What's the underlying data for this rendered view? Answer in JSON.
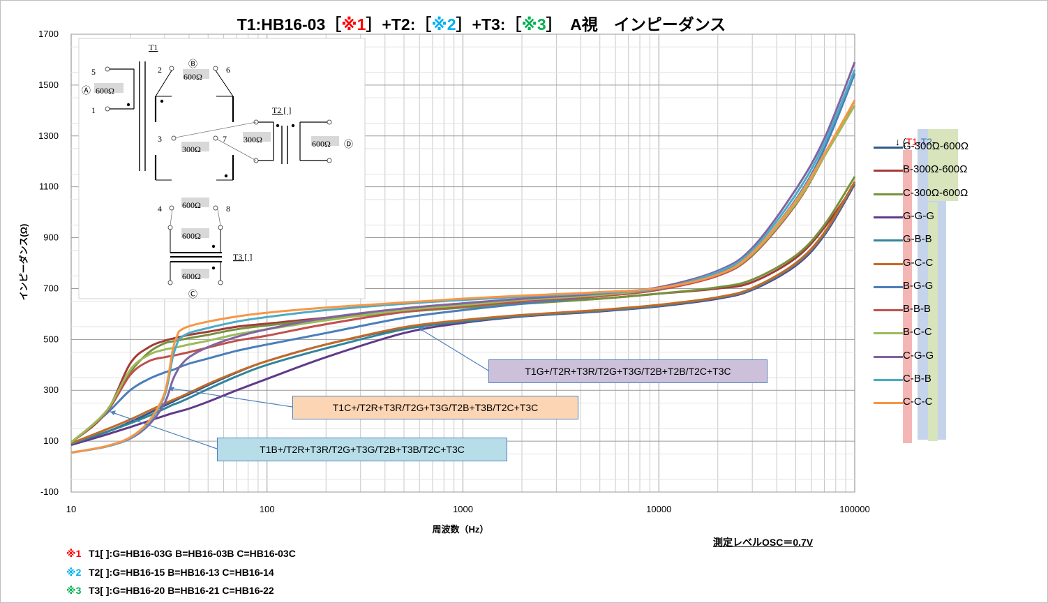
{
  "title_parts": [
    {
      "text": "T1:HB16-03［",
      "cls": ""
    },
    {
      "text": "※1",
      "cls": "red"
    },
    {
      "text": "］+T2:［",
      "cls": ""
    },
    {
      "text": "※2",
      "cls": "blue"
    },
    {
      "text": "］+T3:［",
      "cls": ""
    },
    {
      "text": "※3",
      "cls": "green"
    },
    {
      "text": "］　A視　インピーダンス",
      "cls": ""
    }
  ],
  "legend_header": {
    "arrow": "↓ (",
    "t1": "T1",
    "dash": "-",
    "t2": "T2",
    "tail": "-"
  },
  "measurement_note": "測定レベルOSC＝0.7V",
  "notes": [
    {
      "mark": "※1",
      "text": "T1[ ]:G=HB16-03G  B=HB16-03B  C=HB16-03C"
    },
    {
      "mark": "※2",
      "text": "T2[ ]:G=HB16-15    B=HB16-13    C=HB16-14"
    },
    {
      "mark": "※3",
      "text": "T3[ ]:G=HB16-20    B=HB16-21    C=HB16-22"
    }
  ],
  "callouts": [
    {
      "text": "T1G+/T2R+T3R/T2G+T3G/T2B+T2B/T2C+T3C",
      "bg": "#ccc0da"
    },
    {
      "text": "T1C+/T2R+T3R/T2G+T3G/T2B+T3B/T2C+T3C",
      "bg": "#fcd5b4"
    },
    {
      "text": "T1B+/T2R+T3R/T2G+T3G/T2B+T3B/T2C+T3C",
      "bg": "#b7dee8"
    }
  ],
  "colors": {
    "grid": "#c8c8c8",
    "band_red": "#f4b6b4",
    "band_blue": "#c5d4ea",
    "band_green": "#d7e4bc"
  },
  "inset": {
    "T1": "T1",
    "T2": "T2 [ ]",
    "T3": "T3 [ ]",
    "A": "Ⓐ",
    "B": "Ⓑ",
    "C": "Ⓒ",
    "D": "Ⓓ",
    "ohm600": "600Ω",
    "ohm300": "300Ω",
    "pins": [
      "1",
      "2",
      "3",
      "4",
      "5",
      "6",
      "7",
      "8"
    ]
  },
  "chart_data": {
    "type": "line",
    "title": "T1:HB16-03［※1］+T2:［※2］+T3:［※3］　A視　インピーダンス",
    "xlabel": "周波数（Hz）",
    "ylabel": "インピーダンス(Ω)",
    "x_scale": "log",
    "xlim": [
      10,
      100000
    ],
    "ylim": [
      -100,
      1700
    ],
    "x_ticks": [
      10,
      100,
      1000,
      10000,
      100000
    ],
    "y_ticks": [
      -100,
      100,
      300,
      500,
      700,
      900,
      1100,
      1300,
      1500,
      1700
    ],
    "grid": true,
    "legend_position": "right",
    "x": [
      10,
      15,
      20,
      25,
      30,
      33,
      35,
      36,
      40,
      50,
      70,
      100,
      200,
      500,
      1000,
      2000,
      5000,
      10000,
      20000,
      30000,
      50000,
      70000,
      100000
    ],
    "series": [
      {
        "name": "G-300Ω-600Ω",
        "color": "#2e5b8e",
        "values": [
          90,
          135,
          175,
          210,
          240,
          255,
          265,
          270,
          285,
          320,
          370,
          415,
          480,
          545,
          575,
          595,
          615,
          635,
          665,
          700,
          800,
          920,
          1120
        ]
      },
      {
        "name": "B-300Ω-600Ω",
        "color": "#a33b38",
        "values": [
          95,
          210,
          405,
          470,
          495,
          503,
          508,
          510,
          518,
          530,
          550,
          562,
          585,
          610,
          628,
          642,
          660,
          680,
          700,
          725,
          820,
          940,
          1110
        ]
      },
      {
        "name": "C-300Ω-600Ω",
        "color": "#76923c",
        "values": [
          95,
          215,
          370,
          450,
          485,
          492,
          496,
          498,
          505,
          518,
          540,
          555,
          580,
          608,
          625,
          640,
          660,
          680,
          705,
          735,
          830,
          950,
          1140
        ]
      },
      {
        "name": "G-G-G",
        "color": "#5f3b8a",
        "values": [
          85,
          125,
          155,
          180,
          200,
          210,
          215,
          218,
          228,
          255,
          300,
          345,
          430,
          525,
          565,
          590,
          610,
          630,
          660,
          695,
          790,
          910,
          1110
        ]
      },
      {
        "name": "G-B-B",
        "color": "#31859c",
        "values": [
          90,
          135,
          170,
          200,
          228,
          243,
          250,
          254,
          270,
          305,
          355,
          400,
          465,
          540,
          570,
          592,
          612,
          632,
          663,
          698,
          795,
          915,
          1115
        ]
      },
      {
        "name": "G-C-C",
        "color": "#c46a26",
        "values": [
          92,
          145,
          185,
          220,
          248,
          262,
          270,
          274,
          290,
          325,
          372,
          415,
          480,
          548,
          576,
          596,
          616,
          636,
          666,
          702,
          800,
          920,
          1120
        ]
      },
      {
        "name": "B-G-G",
        "color": "#4a7ebb",
        "values": [
          95,
          205,
          300,
          345,
          370,
          380,
          388,
          392,
          405,
          425,
          455,
          480,
          525,
          585,
          615,
          640,
          670,
          700,
          760,
          840,
          1050,
          1250,
          1545
        ]
      },
      {
        "name": "B-B-B",
        "color": "#c0504d",
        "values": [
          95,
          210,
          360,
          415,
          430,
          436,
          440,
          442,
          450,
          468,
          495,
          515,
          560,
          608,
          630,
          650,
          670,
          695,
          750,
          830,
          1030,
          1220,
          1440
        ]
      },
      {
        "name": "B-C-C",
        "color": "#9bbb59",
        "values": [
          95,
          215,
          380,
          440,
          460,
          466,
          470,
          472,
          480,
          495,
          520,
          540,
          575,
          615,
          635,
          655,
          675,
          700,
          755,
          835,
          1035,
          1220,
          1420
        ]
      },
      {
        "name": "C-G-G",
        "color": "#8064a2",
        "values": [
          55,
          78,
          110,
          165,
          250,
          340,
          380,
          395,
          430,
          470,
          510,
          540,
          585,
          622,
          642,
          660,
          680,
          705,
          770,
          860,
          1090,
          1290,
          1590
        ]
      },
      {
        "name": "C-B-B",
        "color": "#4bacc6",
        "values": [
          55,
          78,
          112,
          175,
          280,
          430,
          490,
          505,
          525,
          545,
          570,
          588,
          615,
          640,
          655,
          668,
          683,
          700,
          765,
          850,
          1070,
          1270,
          1560
        ]
      },
      {
        "name": "C-C-C",
        "color": "#f79646",
        "values": [
          55,
          80,
          115,
          180,
          290,
          460,
          520,
          535,
          552,
          570,
          590,
          605,
          625,
          645,
          660,
          672,
          686,
          702,
          755,
          840,
          1045,
          1230,
          1440
        ]
      }
    ]
  }
}
